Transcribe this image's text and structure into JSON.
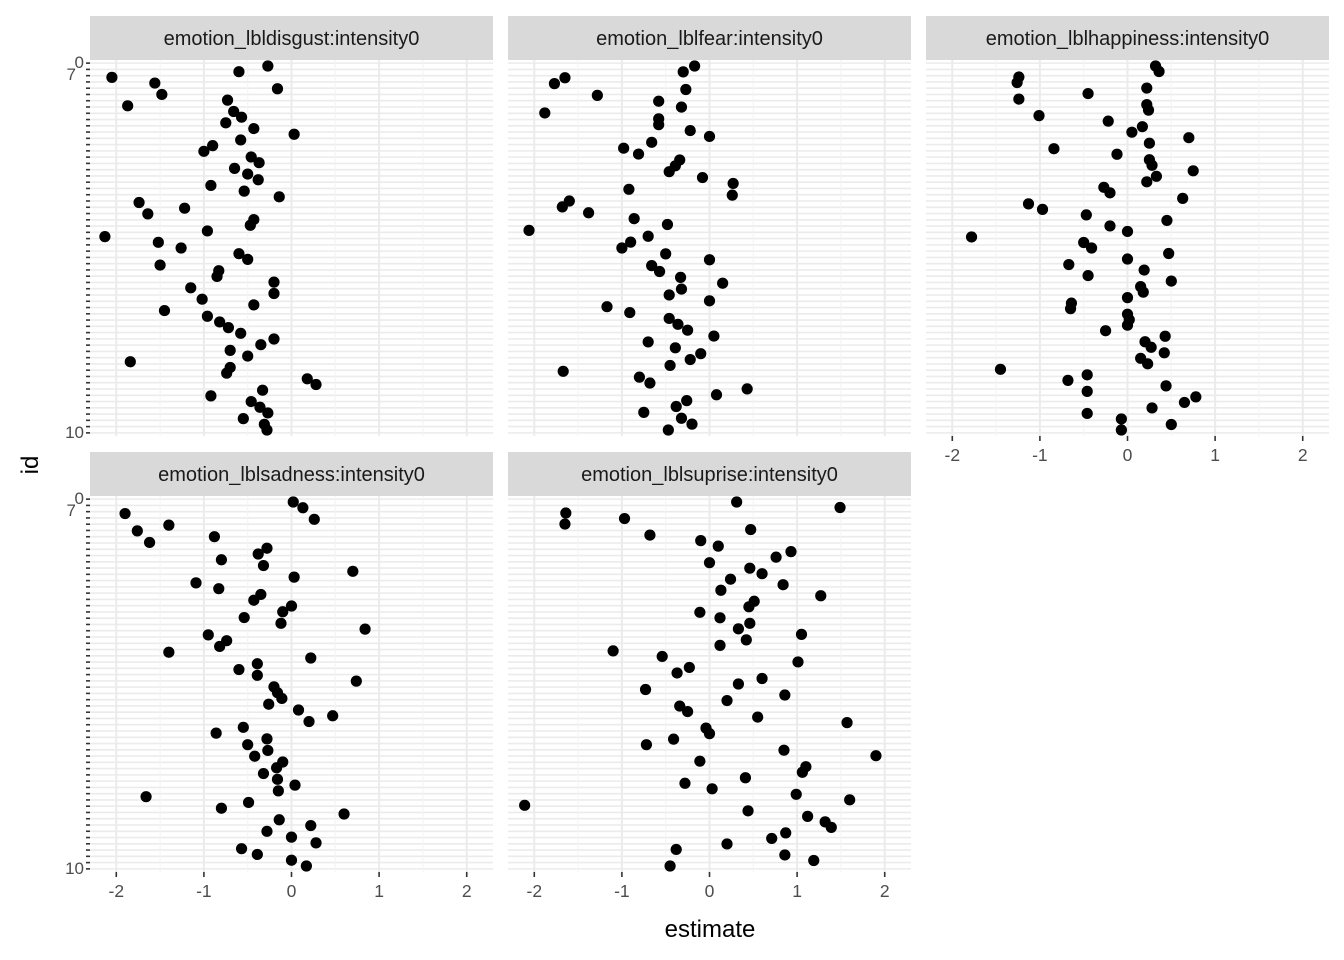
{
  "chart_data": {
    "type": "scatter",
    "xlabel": "estimate",
    "ylabel": "id",
    "xlim": [
      -2.3,
      2.3
    ],
    "x_ticks": [
      -2,
      -1,
      0,
      1,
      2
    ],
    "x_tick_labels": [
      "-2",
      "-1",
      "0",
      "1",
      "2"
    ],
    "y_tick_labels_visible": [
      "0",
      "7",
      "10"
    ],
    "y_categories": 59,
    "grid": true,
    "point_color": "#000000",
    "panel_background": "#ffffff",
    "grid_color": "#ebebeb",
    "strip_background": "#d9d9d9",
    "panels": [
      {
        "title": "emotion_lbldisgust:intensity0",
        "values": [
          -0.28,
          -0.31,
          -0.55,
          -0.27,
          -0.36,
          -0.46,
          -0.92,
          -0.33,
          0.28,
          0.18,
          -0.74,
          -0.7,
          -1.84,
          -0.5,
          -0.7,
          -0.35,
          -0.2,
          -0.58,
          -0.72,
          -0.82,
          -0.96,
          -1.45,
          -0.43,
          -1.02,
          -0.2,
          -1.15,
          -0.2,
          -0.85,
          -0.83,
          -1.5,
          -0.5,
          -0.6,
          -1.26,
          -1.52,
          -2.13,
          -0.96,
          -0.47,
          -0.43,
          -1.64,
          -1.22,
          -1.74,
          -0.14,
          -0.54,
          -0.92,
          -0.38,
          -0.5,
          -0.65,
          -0.37,
          -0.46,
          -1.0,
          -0.9,
          -0.58,
          0.03,
          -0.43,
          -0.75,
          -0.57,
          -0.66,
          -1.87,
          -0.73,
          -1.48,
          -0.16,
          -1.56,
          -2.05,
          -0.6,
          -0.27
        ]
      },
      {
        "title": "emotion_lblfear:intensity0",
        "values": [
          -0.47,
          -0.2,
          -0.32,
          -0.75,
          -0.38,
          -0.26,
          0.08,
          0.43,
          -0.68,
          -0.8,
          -1.67,
          -0.45,
          -0.22,
          -0.1,
          -0.39,
          -0.7,
          0.05,
          -0.25,
          -0.36,
          -0.46,
          -0.91,
          -1.17,
          0.0,
          -0.46,
          -0.32,
          0.15,
          -0.33,
          -0.57,
          -0.66,
          0.0,
          -0.5,
          -1.0,
          -0.9,
          -0.7,
          -2.06,
          -0.48,
          -0.86,
          -1.38,
          -1.68,
          -1.6,
          0.26,
          -0.92,
          0.27,
          -0.08,
          -0.46,
          -0.39,
          -0.34,
          -0.81,
          -0.98,
          -0.66,
          0.0,
          -0.22,
          -0.58,
          -0.58,
          -1.88,
          -0.32,
          -0.58,
          -1.28,
          -0.27,
          -1.77,
          -1.65,
          -0.3,
          -0.17
        ]
      },
      {
        "title": "emotion_lblhappiness:intensity0",
        "values": [
          -0.07,
          0.5,
          -0.07,
          -0.46,
          0.28,
          0.65,
          0.78,
          -0.46,
          0.44,
          -0.68,
          -0.46,
          -1.45,
          0.23,
          0.15,
          0.42,
          0.27,
          0.2,
          0.43,
          -0.25,
          0.0,
          0.02,
          0.0,
          -0.65,
          -0.64,
          0.0,
          0.18,
          0.15,
          0.5,
          -0.45,
          0.19,
          -0.67,
          0.0,
          0.47,
          -0.41,
          -0.5,
          -1.78,
          0.0,
          -0.2,
          0.45,
          -0.47,
          -0.97,
          -1.13,
          0.63,
          -0.2,
          -0.27,
          0.22,
          0.33,
          0.75,
          0.28,
          0.25,
          -0.12,
          -0.84,
          0.25,
          0.7,
          0.05,
          0.17,
          -0.22,
          -1.01,
          0.24,
          0.22,
          -1.24,
          -0.45,
          0.22,
          -1.26,
          -1.24,
          0.36,
          0.32
        ]
      },
      {
        "title": "emotion_lblsadness:intensity0",
        "values": [
          0.17,
          0.0,
          -0.39,
          -0.57,
          0.28,
          0.0,
          -0.28,
          0.22,
          -0.14,
          0.6,
          -0.8,
          -0.49,
          -1.66,
          -0.15,
          0.04,
          -0.16,
          -0.32,
          -0.17,
          -0.1,
          -0.42,
          -0.27,
          -0.5,
          -0.28,
          -0.86,
          -0.55,
          0.2,
          0.47,
          0.08,
          -0.26,
          -0.11,
          -0.16,
          -0.2,
          0.74,
          -0.39,
          -0.6,
          -0.39,
          0.22,
          -1.4,
          -0.82,
          -0.74,
          -0.95,
          0.84,
          -0.12,
          -0.54,
          -0.1,
          0.0,
          -0.43,
          -0.35,
          -0.83,
          -1.09,
          0.03,
          0.7,
          -0.32,
          -0.8,
          -0.38,
          -0.28,
          -1.62,
          -0.88,
          -1.76,
          -1.4,
          0.26,
          -1.9,
          0.13,
          0.02
        ]
      },
      {
        "title": "emotion_lblsuprise:intensity0",
        "values": [
          -0.45,
          1.19,
          0.86,
          -0.38,
          0.2,
          0.71,
          0.87,
          1.39,
          1.32,
          1.12,
          0.44,
          -2.11,
          1.6,
          0.99,
          0.03,
          -0.28,
          0.41,
          1.06,
          1.1,
          -0.11,
          1.9,
          0.85,
          -0.72,
          -0.41,
          0.0,
          -0.04,
          1.57,
          0.55,
          -0.25,
          -0.34,
          0.2,
          0.86,
          -0.73,
          0.33,
          0.6,
          -0.37,
          -0.23,
          1.01,
          -0.54,
          -1.1,
          0.12,
          0.42,
          1.05,
          0.33,
          0.46,
          0.12,
          -0.11,
          0.45,
          0.51,
          1.27,
          0.13,
          0.84,
          0.24,
          0.6,
          0.46,
          0.0,
          0.76,
          0.93,
          0.1,
          -0.1,
          -0.68,
          0.47,
          -1.65,
          -0.97,
          -1.64,
          1.49,
          0.31
        ]
      }
    ]
  }
}
